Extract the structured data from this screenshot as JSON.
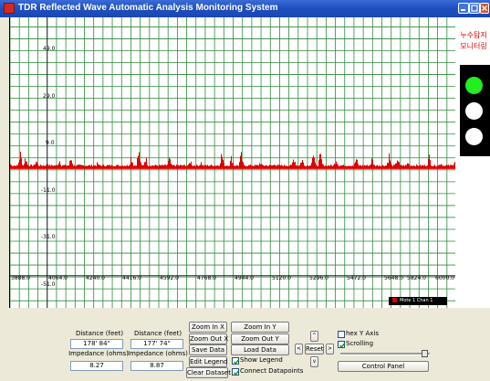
{
  "window": {
    "title": "TDR Reflected Wave Automatic Analysis Monitoring System"
  },
  "plot": {
    "y_labels": [
      "49.0",
      "29.0",
      "9.0",
      "-11.0",
      "-31.0",
      "-51.0"
    ],
    "x_labels": [
      "3888.0",
      "4064.0",
      "4240.0",
      "4416.0",
      "4592.0",
      "4768.0",
      "4944.0",
      "5120.0",
      "5296.0",
      "5472.0",
      "5648.0",
      "5824.0",
      "6000.0"
    ],
    "legend": "Mote 1 Chan 1",
    "series_color": "#dd0000"
  },
  "chart_data": {
    "type": "line",
    "xlim": [
      3888.0,
      6000.0
    ],
    "ylim": [
      -58.0,
      64.0
    ],
    "grid": true,
    "legend_position": "bottom-right",
    "series": [
      {
        "name": "Mote 1 Chan 1",
        "baseline": 1.0,
        "bursts": [
          {
            "x": 3888,
            "peak": 2.0
          },
          {
            "x": 3935,
            "peak": 8.0
          },
          {
            "x": 3960,
            "peak": 6.0
          },
          {
            "x": 4010,
            "peak": 4.0
          },
          {
            "x": 4065,
            "peak": 2.5
          },
          {
            "x": 4120,
            "peak": 4.5
          },
          {
            "x": 4175,
            "peak": 5.5
          },
          {
            "x": 4300,
            "peak": 2.5
          },
          {
            "x": 4460,
            "peak": 6.5
          },
          {
            "x": 4495,
            "peak": 9.0
          },
          {
            "x": 4528,
            "peak": 6.0
          },
          {
            "x": 4640,
            "peak": 5.0
          },
          {
            "x": 4740,
            "peak": 4.0
          },
          {
            "x": 4790,
            "peak": 3.0
          },
          {
            "x": 4888,
            "peak": 8.0
          },
          {
            "x": 4935,
            "peak": 6.0
          },
          {
            "x": 4980,
            "peak": 7.0
          },
          {
            "x": 5070,
            "peak": 3.0
          },
          {
            "x": 5140,
            "peak": 2.5
          },
          {
            "x": 5230,
            "peak": 6.0
          },
          {
            "x": 5268,
            "peak": 5.0
          },
          {
            "x": 5320,
            "peak": 9.0
          },
          {
            "x": 5355,
            "peak": 7.0
          },
          {
            "x": 5430,
            "peak": 5.0
          },
          {
            "x": 5525,
            "peak": 5.0
          },
          {
            "x": 5600,
            "peak": 5.0
          },
          {
            "x": 5680,
            "peak": 7.0
          },
          {
            "x": 5720,
            "peak": 5.5
          },
          {
            "x": 5770,
            "peak": 3.0
          },
          {
            "x": 5870,
            "peak": 6.0
          },
          {
            "x": 5925,
            "peak": 3.0
          },
          {
            "x": 5990,
            "peak": 4.5
          }
        ]
      }
    ]
  },
  "monitor": {
    "label_line1": "누수탐지",
    "label_line2": "모니터링",
    "lights": [
      {
        "state": "on",
        "color": "#22ee22"
      },
      {
        "state": "off",
        "color": "#ffffff"
      },
      {
        "state": "off",
        "color": "#ffffff"
      }
    ]
  },
  "controls": {
    "distance1_label": "Distance (feet)",
    "distance1_value": "178' 84\"",
    "impedance1_label": "Impedance (ohms)",
    "impedance1_value": "8.27",
    "distance2_label": "Distance (feet)",
    "distance2_value": "177' 74\"",
    "impedance2_label": "Impedance (ohms)",
    "impedance2_value": "8.87",
    "zoom_in_x": "Zoom In X",
    "zoom_out_x": "Zoom Out X",
    "save_data": "Save Data",
    "edit_legend": "Edit Legend",
    "clear_dataset": "Clear Dataset",
    "zoom_in_y": "Zoom In Y",
    "zoom_out_y": "Zoom Out Y",
    "load_data": "Load Data",
    "show_legend": "Show Legend",
    "show_legend_checked": true,
    "connect_datapoints": "Connect Datapoints",
    "connect_datapoints_checked": true,
    "arrow_up": "^",
    "arrow_left": "<",
    "reset": "Reset",
    "arrow_right": ">",
    "arrow_down": "v",
    "hex_y_axis": "hex Y Axis",
    "hex_y_axis_checked": false,
    "scrolling": "Scrolling",
    "scrolling_checked": true,
    "slider_value": 0.98,
    "control_panel": "Control Panel"
  }
}
